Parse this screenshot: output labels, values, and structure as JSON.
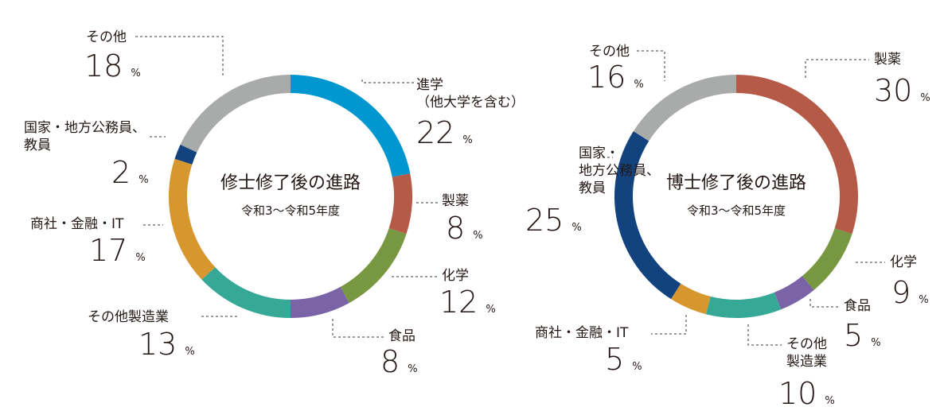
{
  "chart_data": [
    {
      "type": "donut",
      "title": "修士修了後の進路",
      "subtitle": "令和3〜令和5年度",
      "unit": "%",
      "slices": [
        {
          "label": [
            "進学",
            "（他大学を含む）"
          ],
          "value": 22,
          "color": "#0096cf"
        },
        {
          "label": [
            "製薬"
          ],
          "value": 8,
          "color": "#b55a46"
        },
        {
          "label": [
            "化学"
          ],
          "value": 12,
          "color": "#779741"
        },
        {
          "label": [
            "食品"
          ],
          "value": 8,
          "color": "#7b63a7"
        },
        {
          "label": [
            "その他製造業"
          ],
          "value": 13,
          "color": "#36a996"
        },
        {
          "label": [
            "商社・金融・IT"
          ],
          "value": 17,
          "color": "#d6972f"
        },
        {
          "label": [
            "国家・地方公務員、",
            "教員"
          ],
          "value": 2,
          "color": "#12437f"
        },
        {
          "label": [
            "その他"
          ],
          "value": 18,
          "color": "#a9aaaa"
        }
      ]
    },
    {
      "type": "donut",
      "title": "博士修了後の進路",
      "subtitle": "令和3〜令和5年度",
      "unit": "%",
      "slices": [
        {
          "label": [
            "製薬"
          ],
          "value": 30,
          "color": "#b55a46"
        },
        {
          "label": [
            "化学"
          ],
          "value": 9,
          "color": "#779741"
        },
        {
          "label": [
            "食品"
          ],
          "value": 5,
          "color": "#7b63a7"
        },
        {
          "label": [
            "その他",
            "製造業"
          ],
          "value": 10,
          "color": "#36a996"
        },
        {
          "label": [
            "商社・金融・IT"
          ],
          "value": 5,
          "color": "#d6972f"
        },
        {
          "label": [
            "国家・",
            "地方公務員、",
            "教員"
          ],
          "value": 25,
          "color": "#12437f"
        },
        {
          "label": [
            "その他"
          ],
          "value": 16,
          "color": "#a9aaaa"
        }
      ]
    }
  ]
}
